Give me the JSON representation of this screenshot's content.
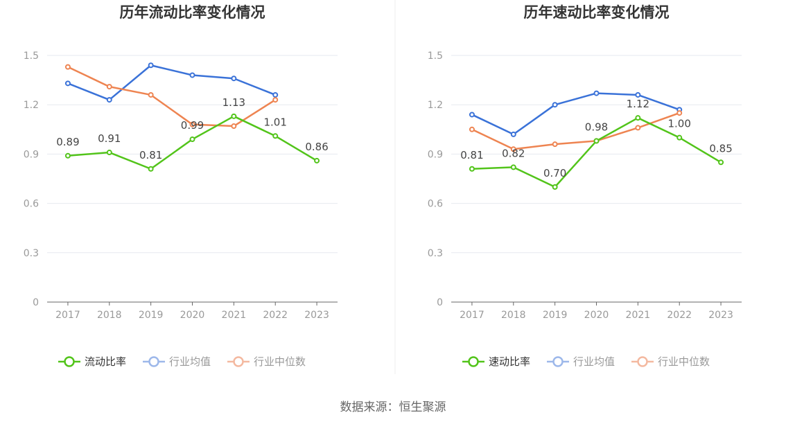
{
  "source_label": "数据来源：恒生聚源",
  "colors": {
    "company": "#52c41a",
    "industry_avg": "#3a72d8",
    "industry_median": "#ee8451",
    "grid": "#e6e9ef",
    "axis": "#666666",
    "tick_text": "#999999",
    "title": "#333333",
    "label": "#444444"
  },
  "chart_data": [
    {
      "type": "line",
      "title": "历年流动比率变化情况",
      "categories": [
        "2017",
        "2018",
        "2019",
        "2020",
        "2021",
        "2022",
        "2023"
      ],
      "ylim": [
        0,
        1.5
      ],
      "yticks": [
        "0",
        "0.3",
        "0.6",
        "0.9",
        "1.2",
        "1.5"
      ],
      "grid": true,
      "legend_position": "bottom",
      "series": [
        {
          "name": "流动比率",
          "key": "company",
          "values": [
            0.89,
            0.91,
            0.81,
            0.99,
            1.13,
            1.01,
            0.86
          ],
          "labels": [
            "0.89",
            "0.91",
            "0.81",
            "0.99",
            "1.13",
            "1.01",
            "0.86"
          ]
        },
        {
          "name": "行业均值",
          "key": "industry_avg",
          "values": [
            1.33,
            1.23,
            1.44,
            1.38,
            1.36,
            1.26,
            null
          ]
        },
        {
          "name": "行业中位数",
          "key": "industry_median",
          "values": [
            1.43,
            1.31,
            1.26,
            1.08,
            1.07,
            1.23,
            null
          ]
        }
      ]
    },
    {
      "type": "line",
      "title": "历年速动比率变化情况",
      "categories": [
        "2017",
        "2018",
        "2019",
        "2020",
        "2021",
        "2022",
        "2023"
      ],
      "ylim": [
        0,
        1.5
      ],
      "yticks": [
        "0",
        "0.3",
        "0.6",
        "0.9",
        "1.2",
        "1.5"
      ],
      "grid": true,
      "legend_position": "bottom",
      "series": [
        {
          "name": "速动比率",
          "key": "company",
          "values": [
            0.81,
            0.82,
            0.7,
            0.98,
            1.12,
            1.0,
            0.85
          ],
          "labels": [
            "0.81",
            "0.82",
            "0.70",
            "0.98",
            "1.12",
            "1.00",
            "0.85"
          ]
        },
        {
          "name": "行业均值",
          "key": "industry_avg",
          "values": [
            1.14,
            1.02,
            1.2,
            1.27,
            1.26,
            1.17,
            null
          ]
        },
        {
          "name": "行业中位数",
          "key": "industry_median",
          "values": [
            1.05,
            0.93,
            0.96,
            0.98,
            1.06,
            1.15,
            null
          ]
        }
      ]
    }
  ]
}
